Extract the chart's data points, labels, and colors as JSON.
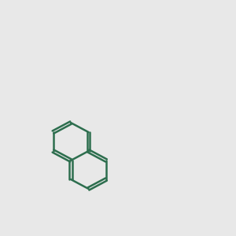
{
  "background_color": "#e8e8e8",
  "bond_color": "#2d6e4e",
  "N_color": "#0000ff",
  "O_color": "#ff0000",
  "line_width": 1.8,
  "font_size": 9
}
